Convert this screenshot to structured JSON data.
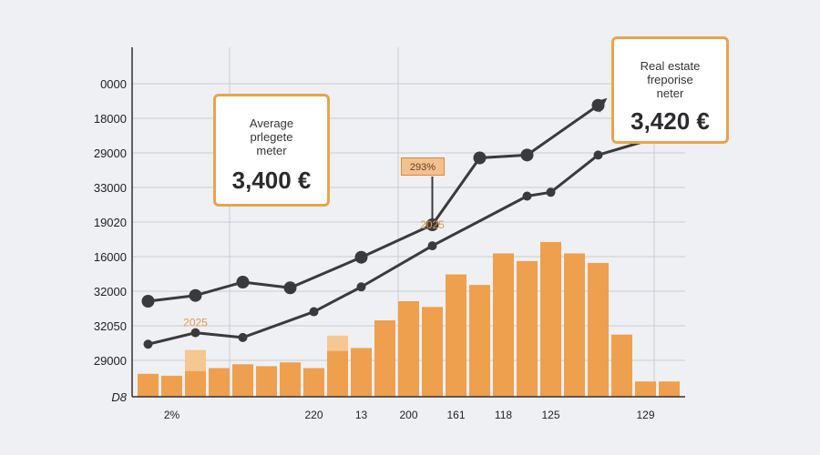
{
  "chart_data": {
    "type": "bar",
    "y_tick_labels": [
      "0000",
      "18000",
      "29000",
      "33000",
      "19020",
      "16000",
      "32000",
      "32050",
      "29000",
      "D8"
    ],
    "x_tick_labels": [
      {
        "label": "2%",
        "index": 1
      },
      {
        "label": "220",
        "index": 7
      },
      {
        "label": "13",
        "index": 9
      },
      {
        "label": "200",
        "index": 11
      },
      {
        "label": "161",
        "index": 13
      },
      {
        "label": "118",
        "index": 15
      },
      {
        "label": "125",
        "index": 17
      },
      {
        "label": "129",
        "index": 21
      }
    ],
    "bars": {
      "values": [
        0.24,
        0.22,
        0.27,
        0.3,
        0.34,
        0.32,
        0.36,
        0.3,
        0.48,
        0.51,
        0.8,
        1.0,
        0.94,
        1.28,
        1.17,
        1.5,
        1.42,
        1.62,
        1.5,
        1.4,
        0.65,
        0.16,
        0.16
      ],
      "color": "#eea04e",
      "highlight_caps": [
        {
          "index": 2,
          "value": 0.49
        },
        {
          "index": 8,
          "value": 0.64
        }
      ],
      "highlight_color": "#f6c792"
    },
    "series": [
      {
        "points": [
          [
            0,
            1.0
          ],
          [
            2,
            1.06
          ],
          [
            4,
            1.2
          ],
          [
            6,
            1.14
          ],
          [
            9,
            1.46
          ],
          [
            12,
            1.8
          ],
          [
            14,
            2.5
          ],
          [
            16,
            2.53
          ],
          [
            19,
            3.05
          ]
        ],
        "color": "#3a3a3d"
      },
      {
        "points": [
          [
            0,
            0.55
          ],
          [
            2,
            0.67
          ],
          [
            4,
            0.62
          ],
          [
            7,
            0.89
          ],
          [
            9,
            1.15
          ],
          [
            12,
            1.58
          ],
          [
            16,
            2.1
          ],
          [
            17,
            2.14
          ],
          [
            19,
            2.53
          ],
          [
            22,
            2.75
          ]
        ],
        "color": "#3a3a3d"
      }
    ],
    "annotations": [
      {
        "text": "2025",
        "x": 2,
        "y": 0.74,
        "color": "#e19a4d"
      },
      {
        "text": "2025",
        "x": 12,
        "y": 1.76,
        "color": "#e19a4d"
      },
      {
        "text": "293%",
        "kind": "badge",
        "points_to_x": 12
      }
    ],
    "grid": true
  },
  "callouts": {
    "left": {
      "label": "Average\nprlegete\nmeter",
      "value": "3,400 €"
    },
    "right": {
      "label": "Real estate\nfreporise\nneter",
      "value": "3,420 €"
    }
  },
  "colors": {
    "bar": "#eea04e",
    "bar_highlight": "#f6c792",
    "line": "#3a3a3d",
    "callout_border": "#e8a44f",
    "grid": "#c9ccd4",
    "background": "#eef0f4"
  }
}
